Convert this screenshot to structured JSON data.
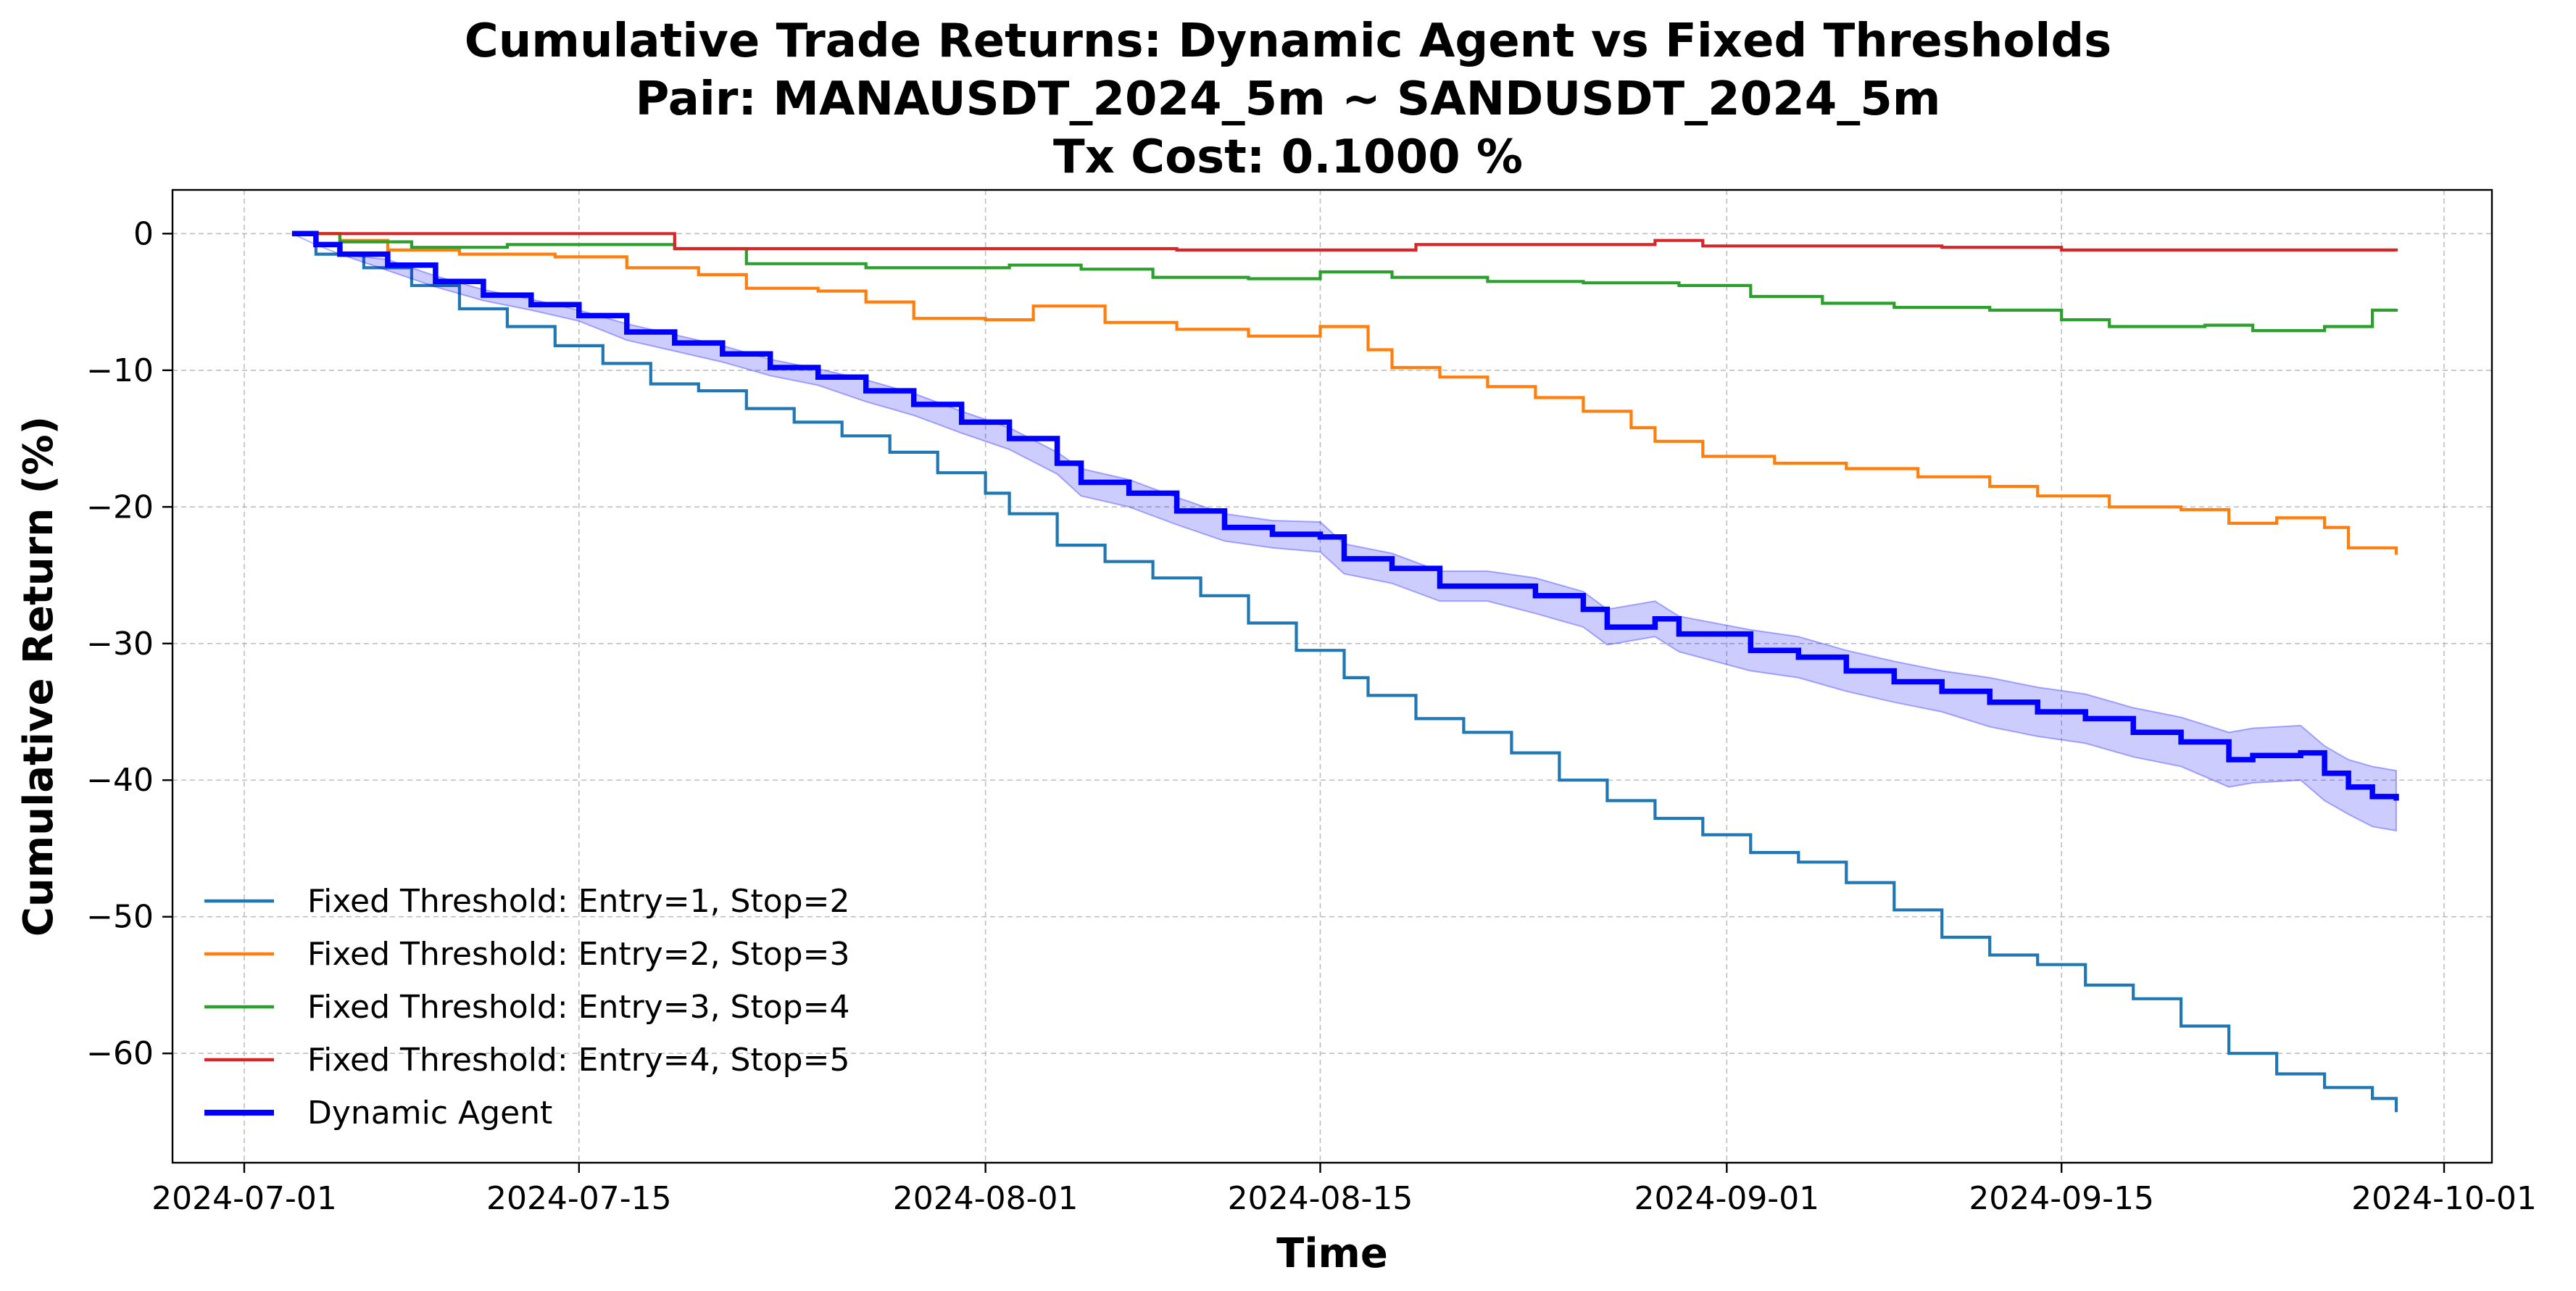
{
  "chart_data": {
    "type": "line",
    "title_lines": [
      "Cumulative Trade Returns: Dynamic Agent vs Fixed Thresholds",
      "Pair: MANAUSDT_2024_5m ~ SANDUSDT_2024_5m",
      "Tx Cost: 0.1000 %"
    ],
    "xlabel": "Time",
    "ylabel": "Cumulative Return (%)",
    "xlim": [
      "2024-06-28",
      "2024-10-03"
    ],
    "ylim": [
      -68,
      3.2
    ],
    "x_ticks": [
      "2024-07-01",
      "2024-07-15",
      "2024-08-01",
      "2024-08-15",
      "2024-09-01",
      "2024-09-15",
      "2024-10-01"
    ],
    "y_ticks": [
      0,
      -10,
      -20,
      -30,
      -40,
      -50,
      -60
    ],
    "y_tick_labels": [
      "0",
      "−10",
      "−20",
      "−30",
      "−40",
      "−50",
      "−60"
    ],
    "grid": true,
    "legend_position": "lower-left",
    "series": [
      {
        "name": "Fixed Threshold: Entry=1, Stop=2",
        "color": "#1f77b4",
        "style": "step",
        "points": [
          [
            "2024-07-03",
            0
          ],
          [
            "2024-07-04",
            -1.5
          ],
          [
            "2024-07-06",
            -2.5
          ],
          [
            "2024-07-08",
            -3.8
          ],
          [
            "2024-07-10",
            -5.5
          ],
          [
            "2024-07-12",
            -6.8
          ],
          [
            "2024-07-14",
            -8.2
          ],
          [
            "2024-07-16",
            -9.5
          ],
          [
            "2024-07-18",
            -11
          ],
          [
            "2024-07-20",
            -11.5
          ],
          [
            "2024-07-22",
            -12.8
          ],
          [
            "2024-07-24",
            -13.8
          ],
          [
            "2024-07-26",
            -14.8
          ],
          [
            "2024-07-28",
            -16
          ],
          [
            "2024-07-30",
            -17.5
          ],
          [
            "2024-08-01",
            -19
          ],
          [
            "2024-08-02",
            -20.5
          ],
          [
            "2024-08-04",
            -22.8
          ],
          [
            "2024-08-06",
            -24
          ],
          [
            "2024-08-08",
            -25.2
          ],
          [
            "2024-08-10",
            -26.5
          ],
          [
            "2024-08-12",
            -28.5
          ],
          [
            "2024-08-14",
            -30.5
          ],
          [
            "2024-08-16",
            -32.5
          ],
          [
            "2024-08-17",
            -33.8
          ],
          [
            "2024-08-19",
            -35.5
          ],
          [
            "2024-08-21",
            -36.5
          ],
          [
            "2024-08-23",
            -38
          ],
          [
            "2024-08-25",
            -40
          ],
          [
            "2024-08-27",
            -41.5
          ],
          [
            "2024-08-29",
            -42.8
          ],
          [
            "2024-08-31",
            -44
          ],
          [
            "2024-09-02",
            -45.3
          ],
          [
            "2024-09-04",
            -46
          ],
          [
            "2024-09-06",
            -47.5
          ],
          [
            "2024-09-08",
            -49.5
          ],
          [
            "2024-09-10",
            -51.5
          ],
          [
            "2024-09-12",
            -52.8
          ],
          [
            "2024-09-14",
            -53.5
          ],
          [
            "2024-09-16",
            -55
          ],
          [
            "2024-09-18",
            -56
          ],
          [
            "2024-09-20",
            -58
          ],
          [
            "2024-09-22",
            -60
          ],
          [
            "2024-09-24",
            -61.5
          ],
          [
            "2024-09-26",
            -62.5
          ],
          [
            "2024-09-28",
            -63.3
          ],
          [
            "2024-09-29",
            -64.3
          ]
        ]
      },
      {
        "name": "Fixed Threshold: Entry=2, Stop=3",
        "color": "#ff7f0e",
        "style": "step",
        "points": [
          [
            "2024-07-03",
            0
          ],
          [
            "2024-07-05",
            -0.5
          ],
          [
            "2024-07-07",
            -1.2
          ],
          [
            "2024-07-10",
            -1.5
          ],
          [
            "2024-07-14",
            -1.7
          ],
          [
            "2024-07-17",
            -2.5
          ],
          [
            "2024-07-20",
            -3
          ],
          [
            "2024-07-22",
            -4
          ],
          [
            "2024-07-25",
            -4.2
          ],
          [
            "2024-07-27",
            -5
          ],
          [
            "2024-07-29",
            -6.2
          ],
          [
            "2024-08-01",
            -6.3
          ],
          [
            "2024-08-03",
            -5.3
          ],
          [
            "2024-08-06",
            -6.5
          ],
          [
            "2024-08-09",
            -7
          ],
          [
            "2024-08-12",
            -7.5
          ],
          [
            "2024-08-15",
            -6.8
          ],
          [
            "2024-08-17",
            -8.5
          ],
          [
            "2024-08-18",
            -9.8
          ],
          [
            "2024-08-20",
            -10.5
          ],
          [
            "2024-08-22",
            -11.2
          ],
          [
            "2024-08-24",
            -12
          ],
          [
            "2024-08-26",
            -13
          ],
          [
            "2024-08-28",
            -14.2
          ],
          [
            "2024-08-29",
            -15.2
          ],
          [
            "2024-08-31",
            -16.3
          ],
          [
            "2024-09-03",
            -16.8
          ],
          [
            "2024-09-06",
            -17.2
          ],
          [
            "2024-09-09",
            -17.8
          ],
          [
            "2024-09-12",
            -18.5
          ],
          [
            "2024-09-14",
            -19.2
          ],
          [
            "2024-09-17",
            -20
          ],
          [
            "2024-09-20",
            -20.2
          ],
          [
            "2024-09-22",
            -21.2
          ],
          [
            "2024-09-24",
            -20.8
          ],
          [
            "2024-09-26",
            -21.5
          ],
          [
            "2024-09-27",
            -23
          ],
          [
            "2024-09-29",
            -23.5
          ]
        ]
      },
      {
        "name": "Fixed Threshold: Entry=3, Stop=4",
        "color": "#2ca02c",
        "style": "step",
        "points": [
          [
            "2024-07-03",
            0
          ],
          [
            "2024-07-05",
            -0.6
          ],
          [
            "2024-07-08",
            -1
          ],
          [
            "2024-07-12",
            -0.8
          ],
          [
            "2024-07-19",
            -1.1
          ],
          [
            "2024-07-22",
            -2.2
          ],
          [
            "2024-07-27",
            -2.5
          ],
          [
            "2024-08-02",
            -2.3
          ],
          [
            "2024-08-05",
            -2.6
          ],
          [
            "2024-08-08",
            -3.2
          ],
          [
            "2024-08-12",
            -3.3
          ],
          [
            "2024-08-15",
            -2.8
          ],
          [
            "2024-08-18",
            -3.2
          ],
          [
            "2024-08-22",
            -3.5
          ],
          [
            "2024-08-26",
            -3.6
          ],
          [
            "2024-08-30",
            -3.8
          ],
          [
            "2024-09-02",
            -4.6
          ],
          [
            "2024-09-05",
            -5.1
          ],
          [
            "2024-09-08",
            -5.4
          ],
          [
            "2024-09-12",
            -5.6
          ],
          [
            "2024-09-15",
            -6.3
          ],
          [
            "2024-09-17",
            -6.8
          ],
          [
            "2024-09-21",
            -6.7
          ],
          [
            "2024-09-23",
            -7.1
          ],
          [
            "2024-09-26",
            -6.8
          ],
          [
            "2024-09-28",
            -5.6
          ],
          [
            "2024-09-29",
            -5.5
          ]
        ]
      },
      {
        "name": "Fixed Threshold: Entry=4, Stop=5",
        "color": "#d62728",
        "style": "step",
        "points": [
          [
            "2024-07-03",
            0
          ],
          [
            "2024-07-19",
            -1.1
          ],
          [
            "2024-08-09",
            -1.2
          ],
          [
            "2024-08-19",
            -0.8
          ],
          [
            "2024-08-29",
            -0.5
          ],
          [
            "2024-08-31",
            -0.9
          ],
          [
            "2024-09-10",
            -1
          ],
          [
            "2024-09-15",
            -1.2
          ],
          [
            "2024-09-29",
            -1.3
          ]
        ]
      },
      {
        "name": "Dynamic Agent",
        "color": "#0000ff",
        "band_color": "#0000ff",
        "style": "step",
        "band_halfwidth": [
          0,
          0.4,
          0.6,
          0.8,
          1.0,
          1.1,
          1.3,
          1.5,
          1.8,
          2.0,
          2.2
        ],
        "points": [
          [
            "2024-07-03",
            0
          ],
          [
            "2024-07-04",
            -0.8
          ],
          [
            "2024-07-05",
            -1.5
          ],
          [
            "2024-07-07",
            -2.3
          ],
          [
            "2024-07-09",
            -3.5
          ],
          [
            "2024-07-11",
            -4.5
          ],
          [
            "2024-07-13",
            -5.2
          ],
          [
            "2024-07-15",
            -6
          ],
          [
            "2024-07-17",
            -7.2
          ],
          [
            "2024-07-19",
            -8
          ],
          [
            "2024-07-21",
            -8.8
          ],
          [
            "2024-07-23",
            -9.8
          ],
          [
            "2024-07-25",
            -10.5
          ],
          [
            "2024-07-27",
            -11.5
          ],
          [
            "2024-07-29",
            -12.5
          ],
          [
            "2024-07-31",
            -13.8
          ],
          [
            "2024-08-02",
            -15
          ],
          [
            "2024-08-04",
            -16.8
          ],
          [
            "2024-08-05",
            -18.2
          ],
          [
            "2024-08-07",
            -19
          ],
          [
            "2024-08-09",
            -20.3
          ],
          [
            "2024-08-11",
            -21.5
          ],
          [
            "2024-08-13",
            -22
          ],
          [
            "2024-08-15",
            -22.2
          ],
          [
            "2024-08-16",
            -23.8
          ],
          [
            "2024-08-18",
            -24.5
          ],
          [
            "2024-08-20",
            -25.8
          ],
          [
            "2024-08-22",
            -25.8
          ],
          [
            "2024-08-24",
            -26.5
          ],
          [
            "2024-08-26",
            -27.5
          ],
          [
            "2024-08-27",
            -28.8
          ],
          [
            "2024-08-29",
            -28.2
          ],
          [
            "2024-08-30",
            -29.3
          ],
          [
            "2024-09-02",
            -30.5
          ],
          [
            "2024-09-04",
            -31
          ],
          [
            "2024-09-06",
            -32
          ],
          [
            "2024-09-08",
            -32.8
          ],
          [
            "2024-09-10",
            -33.5
          ],
          [
            "2024-09-12",
            -34.3
          ],
          [
            "2024-09-14",
            -35
          ],
          [
            "2024-09-16",
            -35.5
          ],
          [
            "2024-09-18",
            -36.5
          ],
          [
            "2024-09-20",
            -37.2
          ],
          [
            "2024-09-22",
            -38.5
          ],
          [
            "2024-09-23",
            -38.2
          ],
          [
            "2024-09-25",
            -38
          ],
          [
            "2024-09-26",
            -39.5
          ],
          [
            "2024-09-27",
            -40.5
          ],
          [
            "2024-09-28",
            -41.2
          ],
          [
            "2024-09-29",
            -41.5
          ]
        ]
      }
    ]
  }
}
